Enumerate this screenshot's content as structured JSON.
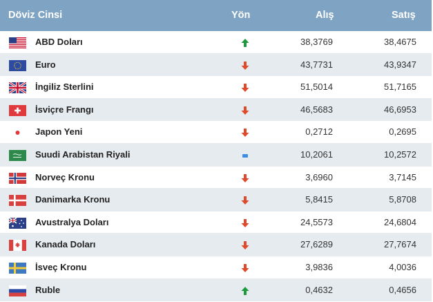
{
  "table": {
    "headers": {
      "name": "Döviz Cinsi",
      "direction": "Yön",
      "buy": "Alış",
      "sell": "Satış"
    },
    "colors": {
      "header_bg": "#7fa4c3",
      "up": "#1e9a3c",
      "down": "#e04a2c",
      "flat": "#3a8ee6"
    },
    "rows": [
      {
        "flag": "us-flag-icon",
        "name": "ABD Doları",
        "direction": "up",
        "buy": "38,3769",
        "sell": "38,4675"
      },
      {
        "flag": "eu-flag-icon",
        "name": "Euro",
        "direction": "down",
        "buy": "43,7731",
        "sell": "43,9347"
      },
      {
        "flag": "gb-flag-icon",
        "name": "İngiliz Sterlini",
        "direction": "down",
        "buy": "51,5014",
        "sell": "51,7165"
      },
      {
        "flag": "ch-flag-icon",
        "name": "İsviçre Frangı",
        "direction": "down",
        "buy": "46,5683",
        "sell": "46,6953"
      },
      {
        "flag": "jp-flag-icon",
        "name": "Japon Yeni",
        "direction": "down",
        "buy": "0,2712",
        "sell": "0,2695"
      },
      {
        "flag": "sa-flag-icon",
        "name": "Suudi Arabistan Riyali",
        "direction": "flat",
        "buy": "10,2061",
        "sell": "10,2572"
      },
      {
        "flag": "no-flag-icon",
        "name": "Norveç Kronu",
        "direction": "down",
        "buy": "3,6960",
        "sell": "3,7145"
      },
      {
        "flag": "dk-flag-icon",
        "name": "Danimarka Kronu",
        "direction": "down",
        "buy": "5,8415",
        "sell": "5,8708"
      },
      {
        "flag": "au-flag-icon",
        "name": "Avustralya Doları",
        "direction": "down",
        "buy": "24,5573",
        "sell": "24,6804"
      },
      {
        "flag": "ca-flag-icon",
        "name": "Kanada Doları",
        "direction": "down",
        "buy": "27,6289",
        "sell": "27,7674"
      },
      {
        "flag": "se-flag-icon",
        "name": "İsveç Kronu",
        "direction": "down",
        "buy": "3,9836",
        "sell": "4,0036"
      },
      {
        "flag": "ru-flag-icon",
        "name": "Ruble",
        "direction": "up",
        "buy": "0,4632",
        "sell": "0,4656"
      }
    ]
  }
}
